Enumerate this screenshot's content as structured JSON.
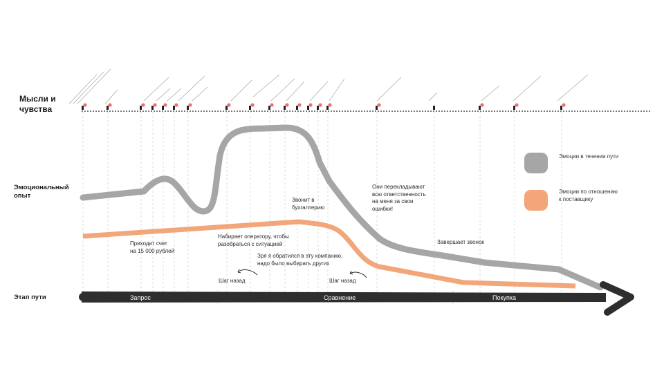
{
  "rows": {
    "thoughts": "Мысли и\nчувства",
    "emotions": "Эмоциональный\nопыт",
    "stage": "Этап пути"
  },
  "annotations": {
    "invoice": "Приходит счет\nна 15 000 рублей",
    "operator": "Набирает оператору, чтобы\nразобраться с ситуацией",
    "accounting": "Звонит в\nбухгалтерию",
    "blame": "Они перекладывают\nвсю ответственность\nна меня за свои\nошибки!",
    "regret": "Зря я обратился в эту компанию,\nнадо было выбирать других",
    "step_back_1": "Шаг назад",
    "step_back_2": "Шаг назад",
    "ends_call": "Завершает звонок"
  },
  "legend": [
    {
      "label": "Эмоции в течении пути",
      "color": "#a6a6a6"
    },
    {
      "label": "Эмоции по отношению\nк поставщику",
      "color": "#f2a679"
    }
  ],
  "stages": [
    "Запрос",
    "Сравнение",
    "Покупка"
  ],
  "colors": {
    "journey_line": "#a6a6a6",
    "supplier_line": "#f2a679",
    "arrow": "#2e2e2e",
    "marker_dot": "#ef6f6f"
  }
}
